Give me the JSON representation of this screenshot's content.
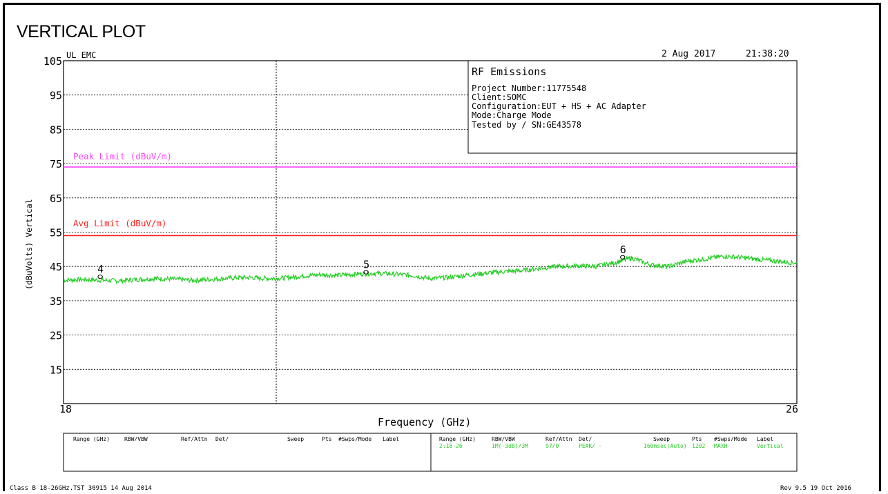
{
  "page_title": "VERTICAL PLOT",
  "header": {
    "lab": "UL EMC",
    "date": "2 Aug 2017",
    "time": "21:38:20"
  },
  "info_box": {
    "title": "RF Emissions",
    "lines": [
      "Project Number:11775548",
      "Client:SOMC",
      "Configuration:EUT + HS + AC Adapter",
      "Mode:Charge Mode",
      "Tested by / SN:GE43578"
    ]
  },
  "limit_labels": {
    "peak": "Peak Limit (dBuV/m)",
    "avg": "Avg Limit (dBuV/m)"
  },
  "colors": {
    "peak_limit": "#ff44ff",
    "avg_limit": "#ff2020",
    "trace": "#22cc22",
    "grid": "#000000",
    "table_values": "#22cc22"
  },
  "settings_table": {
    "headers": [
      "Range (GHz)",
      "RBW/VBW",
      "Ref/Attn",
      "Det/",
      "Sweep",
      "Pts",
      "#Swps/Mode",
      "Label"
    ],
    "row": [
      "2:18-26",
      "1M(-3dB)/3M",
      "97/0",
      "PEAK/ -",
      "160msec(Auto)",
      "1202",
      "MAXH",
      "Vertical"
    ]
  },
  "footer": {
    "left": "Class B 18-26GHz.TST 30915 14 Aug 2014",
    "right": "Rev 9.5 19 Oct 2016"
  },
  "chart_data": {
    "type": "line",
    "title": "",
    "xlabel": "Frequency (GHz)",
    "ylabel": "(dBuVolts) Vertical",
    "xlim": [
      18,
      26
    ],
    "ylim": [
      5,
      105
    ],
    "x_tick_labels": [
      "18",
      "26"
    ],
    "y_ticks": [
      105,
      95,
      85,
      75,
      65,
      55,
      45,
      35,
      25,
      15
    ],
    "grid": true,
    "limits": [
      {
        "name": "Peak Limit (dBuV/m)",
        "value": 74
      },
      {
        "name": "Avg Limit (dBuV/m)",
        "value": 54
      }
    ],
    "markers": [
      {
        "label": "4",
        "x": 18.4,
        "y": 42
      },
      {
        "label": "5",
        "x": 21.3,
        "y": 43.3
      },
      {
        "label": "6",
        "x": 24.1,
        "y": 47.7
      }
    ],
    "series": [
      {
        "x": [
          18.0,
          18.2,
          18.4,
          18.6,
          18.8,
          19.0,
          19.2,
          19.4,
          19.6,
          19.8,
          20.0,
          20.2,
          20.4,
          20.6,
          20.8,
          21.0,
          21.2,
          21.4,
          21.6,
          21.8,
          22.0,
          22.2,
          22.4,
          22.6,
          22.8,
          23.0,
          23.2,
          23.4,
          23.6,
          23.8,
          24.0,
          24.2,
          24.4,
          24.6,
          24.8,
          25.0,
          25.2,
          25.4,
          25.6,
          25.8,
          26.0
        ],
        "values": [
          41.0,
          41.2,
          41.0,
          40.8,
          41.2,
          41.5,
          41.3,
          41.0,
          41.2,
          41.6,
          41.8,
          41.5,
          41.6,
          42.2,
          42.6,
          42.4,
          42.8,
          43.0,
          42.8,
          42.4,
          41.5,
          41.8,
          42.5,
          43.0,
          43.5,
          43.8,
          44.5,
          45.0,
          45.2,
          45.0,
          46.0,
          47.5,
          45.5,
          45.0,
          46.5,
          47.2,
          48.0,
          47.6,
          47.0,
          46.5,
          46.0
        ]
      }
    ]
  }
}
